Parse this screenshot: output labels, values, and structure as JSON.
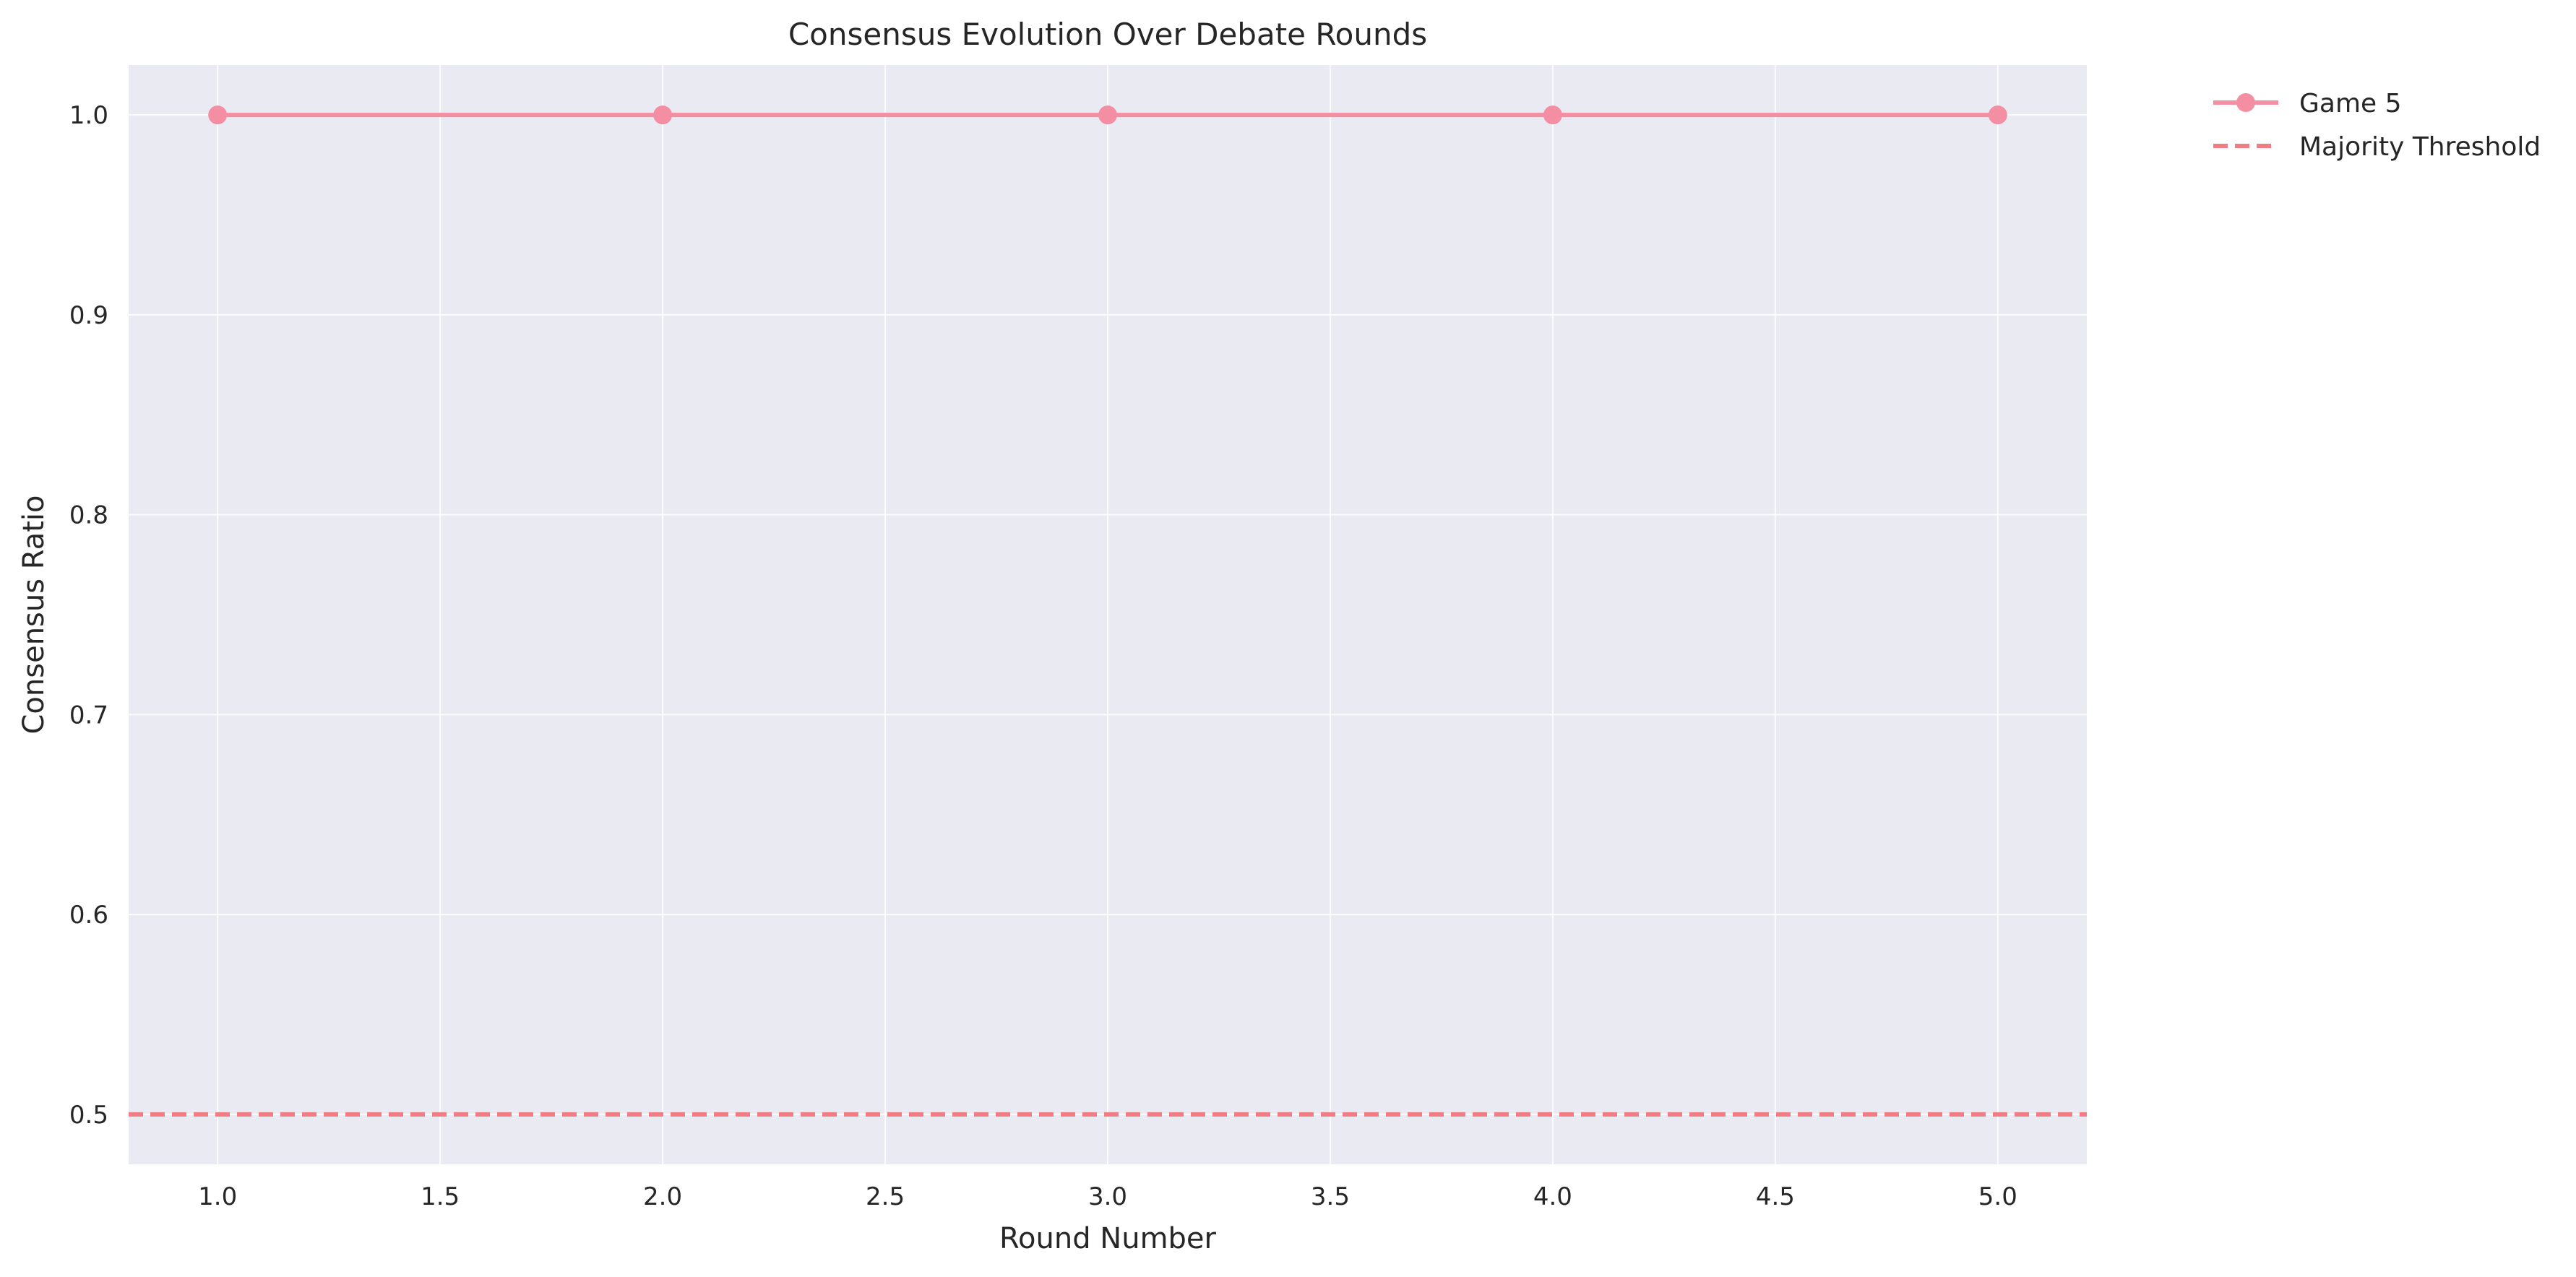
{
  "chart_data": {
    "type": "line",
    "title": "Consensus Evolution Over Debate Rounds",
    "xlabel": "Round Number",
    "ylabel": "Consensus Ratio",
    "xlim": [
      0.8,
      5.2
    ],
    "ylim": [
      0.475,
      1.025
    ],
    "xticks": [
      1.0,
      1.5,
      2.0,
      2.5,
      3.0,
      3.5,
      4.0,
      4.5,
      5.0
    ],
    "xtick_labels": [
      "1.0",
      "1.5",
      "2.0",
      "2.5",
      "3.0",
      "3.5",
      "4.0",
      "4.5",
      "5.0"
    ],
    "yticks": [
      0.5,
      0.6,
      0.7,
      0.8,
      0.9,
      1.0
    ],
    "ytick_labels": [
      "0.5",
      "0.6",
      "0.7",
      "0.8",
      "0.9",
      "1.0"
    ],
    "grid": true,
    "legend_position": "outside-top-right",
    "series": [
      {
        "name": "Game 5",
        "x": [
          1,
          2,
          3,
          4,
          5
        ],
        "y": [
          1.0,
          1.0,
          1.0,
          1.0,
          1.0
        ],
        "color": "#f48fa3",
        "marker": "circle"
      }
    ],
    "reference_lines": [
      {
        "name": "Majority Threshold",
        "y": 0.5,
        "style": "dashed",
        "color": "#f07c84"
      }
    ]
  }
}
